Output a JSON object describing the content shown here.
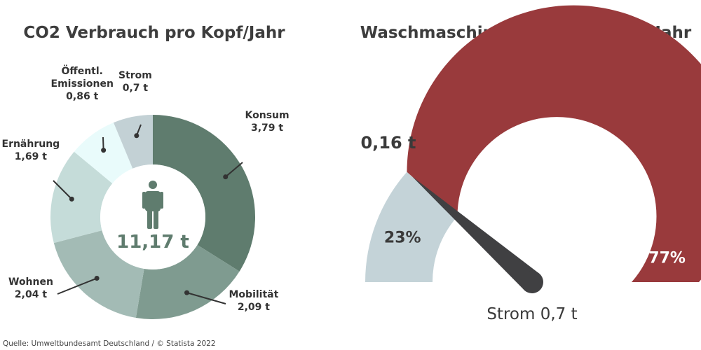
{
  "source": "Quelle: Umweltbundesamt Deutschland / © Statista 2022",
  "chart_data": [
    {
      "type": "pie",
      "title": "CO2 Verbrauch pro Kopf/Jahr",
      "center_label": "11,17 t",
      "center_icon": "person-icon",
      "slices": [
        {
          "name": "Konsum",
          "value": 3.79,
          "label": "3,79 t",
          "color": "#5f7c6e"
        },
        {
          "name": "Mobilität",
          "value": 2.09,
          "label": "2,09 t",
          "color": "#7f9b90"
        },
        {
          "name": "Wohnen",
          "value": 2.04,
          "label": "2,04 t",
          "color": "#a3bbb5"
        },
        {
          "name": "Ernährung",
          "value": 1.69,
          "label": "1,69 t",
          "color": "#c5dcd9"
        },
        {
          "name_lines": [
            "Öffentl.",
            "Emissionen"
          ],
          "value": 0.86,
          "label": "0,86 t",
          "color": "#e9fbfb"
        },
        {
          "name": "Strom",
          "value": 0.7,
          "label": "0,7 t",
          "color": "#c3d1d5"
        }
      ]
    },
    {
      "type": "gauge",
      "title": "Waschmaschine Einsparung pro Jahr",
      "segments": [
        {
          "value": 23,
          "label": "23%",
          "color": "#c4d3d8"
        },
        {
          "value": 77,
          "label": "77%",
          "color": "#993a3c"
        }
      ],
      "needle_value": 23,
      "needle_label": "0,16 t",
      "bottom_label": "Strom 0,7 t",
      "needle_color": "#404042"
    }
  ]
}
